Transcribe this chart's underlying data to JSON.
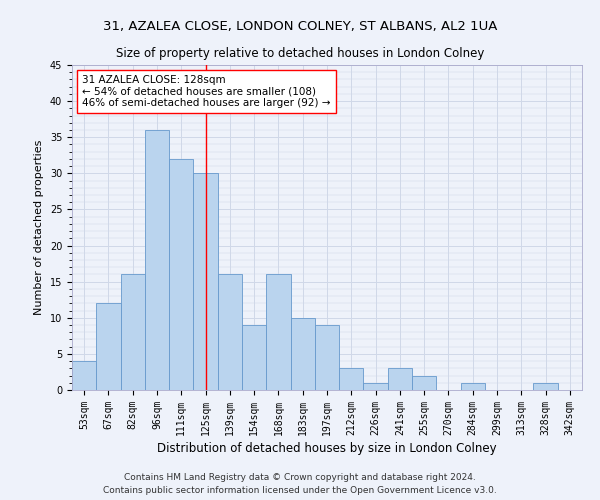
{
  "title": "31, AZALEA CLOSE, LONDON COLNEY, ST ALBANS, AL2 1UA",
  "subtitle": "Size of property relative to detached houses in London Colney",
  "xlabel": "Distribution of detached houses by size in London Colney",
  "ylabel": "Number of detached properties",
  "footer_line1": "Contains HM Land Registry data © Crown copyright and database right 2024.",
  "footer_line2": "Contains public sector information licensed under the Open Government Licence v3.0.",
  "bar_labels": [
    "53sqm",
    "67sqm",
    "82sqm",
    "96sqm",
    "111sqm",
    "125sqm",
    "139sqm",
    "154sqm",
    "168sqm",
    "183sqm",
    "197sqm",
    "212sqm",
    "226sqm",
    "241sqm",
    "255sqm",
    "270sqm",
    "284sqm",
    "299sqm",
    "313sqm",
    "328sqm",
    "342sqm"
  ],
  "bar_values": [
    4,
    12,
    16,
    36,
    32,
    30,
    16,
    9,
    16,
    10,
    9,
    3,
    1,
    3,
    2,
    0,
    1,
    0,
    0,
    1,
    0
  ],
  "bar_color": "#bad4ee",
  "bar_edge_color": "#6699cc",
  "grid_color": "#d0d8e8",
  "background_color": "#eef2fa",
  "annotation_text": "31 AZALEA CLOSE: 128sqm\n← 54% of detached houses are smaller (108)\n46% of semi-detached houses are larger (92) →",
  "vline_x": 5.0,
  "vline_color": "red",
  "annotation_box_color": "white",
  "annotation_box_edge_color": "red",
  "ylim": [
    0,
    45
  ],
  "yticks": [
    0,
    5,
    10,
    15,
    20,
    25,
    30,
    35,
    40,
    45
  ],
  "title_fontsize": 9.5,
  "subtitle_fontsize": 8.5,
  "xlabel_fontsize": 8.5,
  "ylabel_fontsize": 8,
  "tick_fontsize": 7,
  "annotation_fontsize": 7.5,
  "footer_fontsize": 6.5
}
